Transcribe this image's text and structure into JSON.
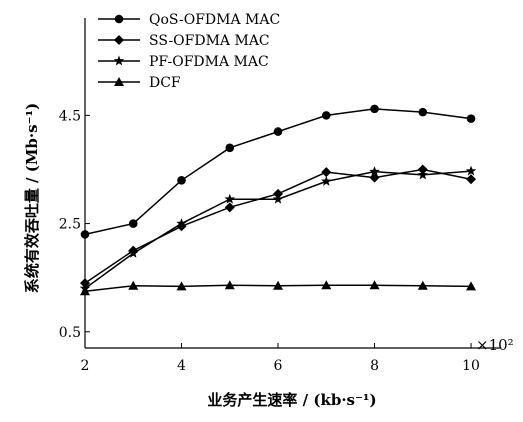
{
  "chart_data": {
    "type": "line",
    "title": "",
    "xlabel": "业务产生速率 / (kb·s⁻¹)",
    "ylabel": "系统有效吞吐量 / (Mb·s⁻¹)",
    "x_multiplier": "×10²",
    "x": [
      2,
      3,
      4,
      5,
      6,
      7,
      8,
      9,
      10
    ],
    "xlim": [
      2,
      10.6
    ],
    "ylim": [
      0.2,
      6.3
    ],
    "x_ticks": [
      2,
      4,
      6,
      8,
      10
    ],
    "x_tick_labels": [
      "2",
      "4",
      "6",
      "8",
      "10"
    ],
    "y_ticks": [
      0.5,
      2.5,
      4.5
    ],
    "y_tick_labels": [
      "0.5",
      "2.5",
      "4.5"
    ],
    "grid": false,
    "legend_position": "top-left",
    "series": [
      {
        "name": "QoS-OFDMA MAC",
        "marker": "circle",
        "values": [
          2.3,
          2.5,
          3.3,
          3.9,
          4.2,
          4.5,
          4.62,
          4.56,
          4.44
        ]
      },
      {
        "name": "SS-OFDMA MAC",
        "marker": "diamond",
        "values": [
          1.4,
          2.0,
          2.45,
          2.8,
          3.05,
          3.45,
          3.35,
          3.5,
          3.32
        ]
      },
      {
        "name": "PF-OFDMA MAC",
        "marker": "star",
        "values": [
          1.3,
          1.95,
          2.5,
          2.95,
          2.95,
          3.28,
          3.46,
          3.4,
          3.47
        ]
      },
      {
        "name": "DCF",
        "marker": "triangle",
        "values": [
          1.25,
          1.35,
          1.34,
          1.36,
          1.35,
          1.36,
          1.36,
          1.35,
          1.34
        ]
      }
    ]
  }
}
